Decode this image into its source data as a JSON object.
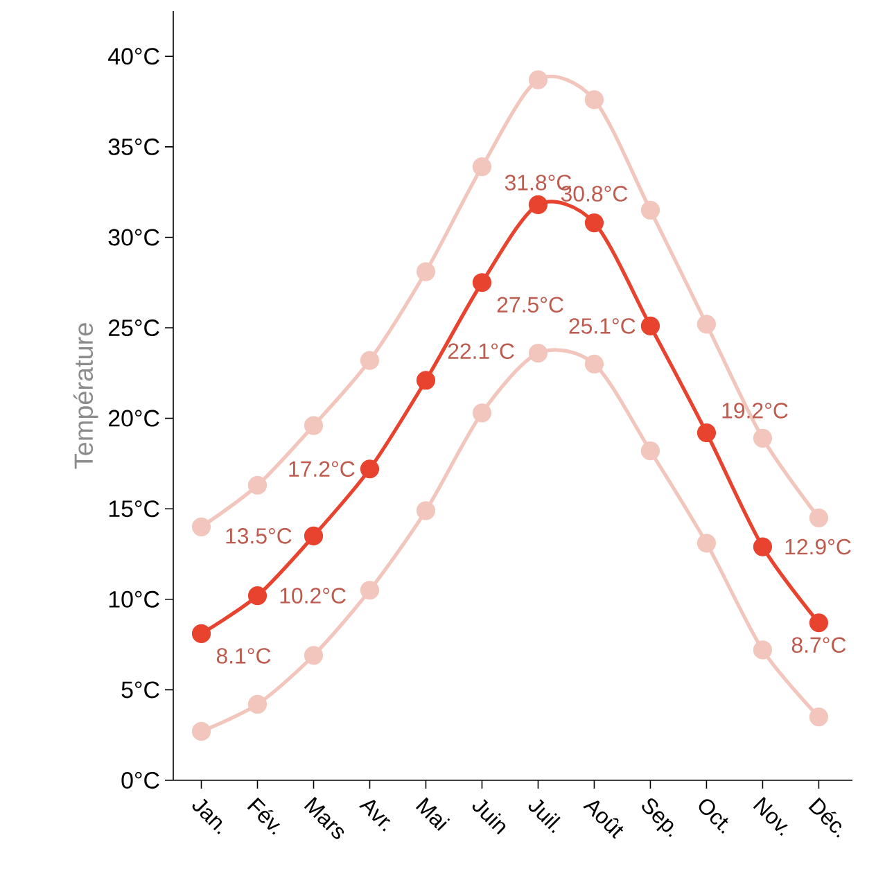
{
  "chart_data": {
    "type": "line",
    "ylabel": "Température",
    "categories": [
      "Jan.",
      "Fév.",
      "Mars",
      "Avr.",
      "Mai",
      "Juin",
      "Juil.",
      "Août",
      "Sep.",
      "Oct.",
      "Nov.",
      "Déc."
    ],
    "series": [
      {
        "color": "#f2c6bd",
        "values": [
          14.0,
          16.3,
          19.6,
          23.2,
          28.1,
          33.9,
          38.7,
          37.6,
          31.5,
          25.2,
          18.9,
          14.5
        ]
      },
      {
        "color": "#f2c6bd",
        "values": [
          2.7,
          4.2,
          6.9,
          10.5,
          14.9,
          20.3,
          23.6,
          23.0,
          18.2,
          13.1,
          7.2,
          3.5
        ]
      },
      {
        "color": "#e8432e",
        "values": [
          8.1,
          10.2,
          13.5,
          17.2,
          22.1,
          27.5,
          31.8,
          30.8,
          25.1,
          19.2,
          12.9,
          8.7
        ],
        "value_labels": [
          "8.1°C",
          "10.2°C",
          "13.5°C",
          "17.2°C",
          "22.1°C",
          "27.5°C",
          "31.8°C",
          "30.8°C",
          "25.1°C",
          "19.2°C",
          "12.9°C",
          "8.7°C"
        ]
      }
    ],
    "ylim": [
      0,
      42.5
    ],
    "yticks": [
      {
        "value": 0,
        "label": "0°C"
      },
      {
        "value": 5,
        "label": "5°C"
      },
      {
        "value": 10,
        "label": "10°C"
      },
      {
        "value": 15,
        "label": "15°C"
      },
      {
        "value": 20,
        "label": "20°C"
      },
      {
        "value": 25,
        "label": "25°C"
      },
      {
        "value": 30,
        "label": "30°C"
      },
      {
        "value": 35,
        "label": "35°C"
      },
      {
        "value": 40,
        "label": "40°C"
      }
    ],
    "marker": "circle",
    "grid": false
  }
}
